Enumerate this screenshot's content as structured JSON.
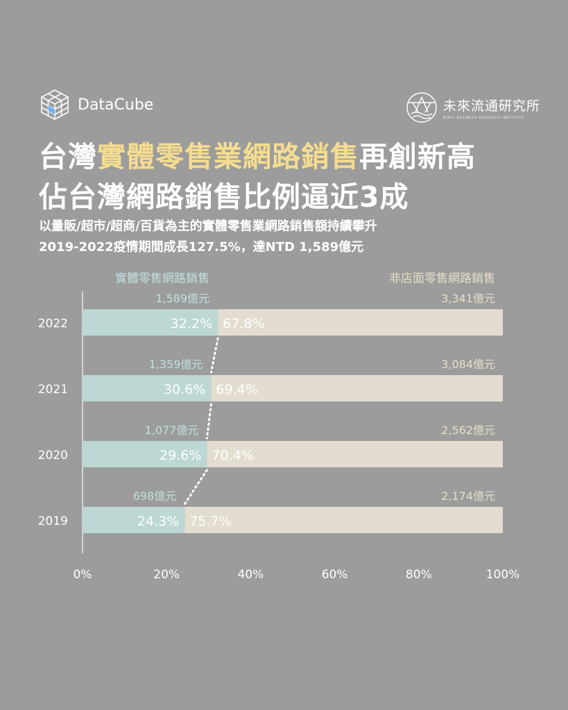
{
  "brand": {
    "name": "DataCube",
    "icon": "cube-grid-icon"
  },
  "org": {
    "name": "未來流通研究所",
    "subtitle": "MIRAI BUSINESS RESEARCH INSTITUTE",
    "icon": "circle-emblem-icon"
  },
  "title": {
    "line1_pre": "台灣",
    "line1_highlight": "實體零售業網路銷售",
    "line1_post": "再創新高",
    "line2": "佔台灣網路銷售比例逼近3成"
  },
  "subtitle": {
    "line1": "以量販/超市/超商/百貨為主的實體零售業網路銷售額持續攀升",
    "line2": "2019-2022疫情期間成長127.5%，達NTD 1,589億元"
  },
  "colors": {
    "background": "#9c9c9c",
    "highlight": "#f5dc8f",
    "physical_bar": "#bcd7d4",
    "physical_text": "#bfe0df",
    "nonstore_bar": "#e3ddd0",
    "nonstore_text": "#e8dec8"
  },
  "chart_data": {
    "type": "bar",
    "orientation": "horizontal",
    "stacked": "percent",
    "categories": [
      "2022",
      "2021",
      "2020",
      "2019"
    ],
    "series": [
      {
        "name": "實體零售網路銷售",
        "values": [
          32.2,
          30.6,
          29.6,
          24.3
        ],
        "labels": [
          "32.2%",
          "30.6%",
          "29.6%",
          "24.3%"
        ],
        "amounts": [
          "1,589億元",
          "1,359億元",
          "1,077億元",
          "698億元"
        ]
      },
      {
        "name": "非店面零售網路銷售",
        "values": [
          67.8,
          69.4,
          70.4,
          75.7
        ],
        "labels": [
          "67.8%",
          "69.4%",
          "70.4%",
          "75.7%"
        ],
        "amounts": [
          "3,341億元",
          "3,084億元",
          "2,562億元",
          "2,174億元"
        ]
      }
    ],
    "xlim": [
      0,
      100
    ],
    "xticks": [
      "0%",
      "20%",
      "40%",
      "60%",
      "80%",
      "100%"
    ],
    "grid": false,
    "connector": "dotted line linking series boundaries"
  }
}
